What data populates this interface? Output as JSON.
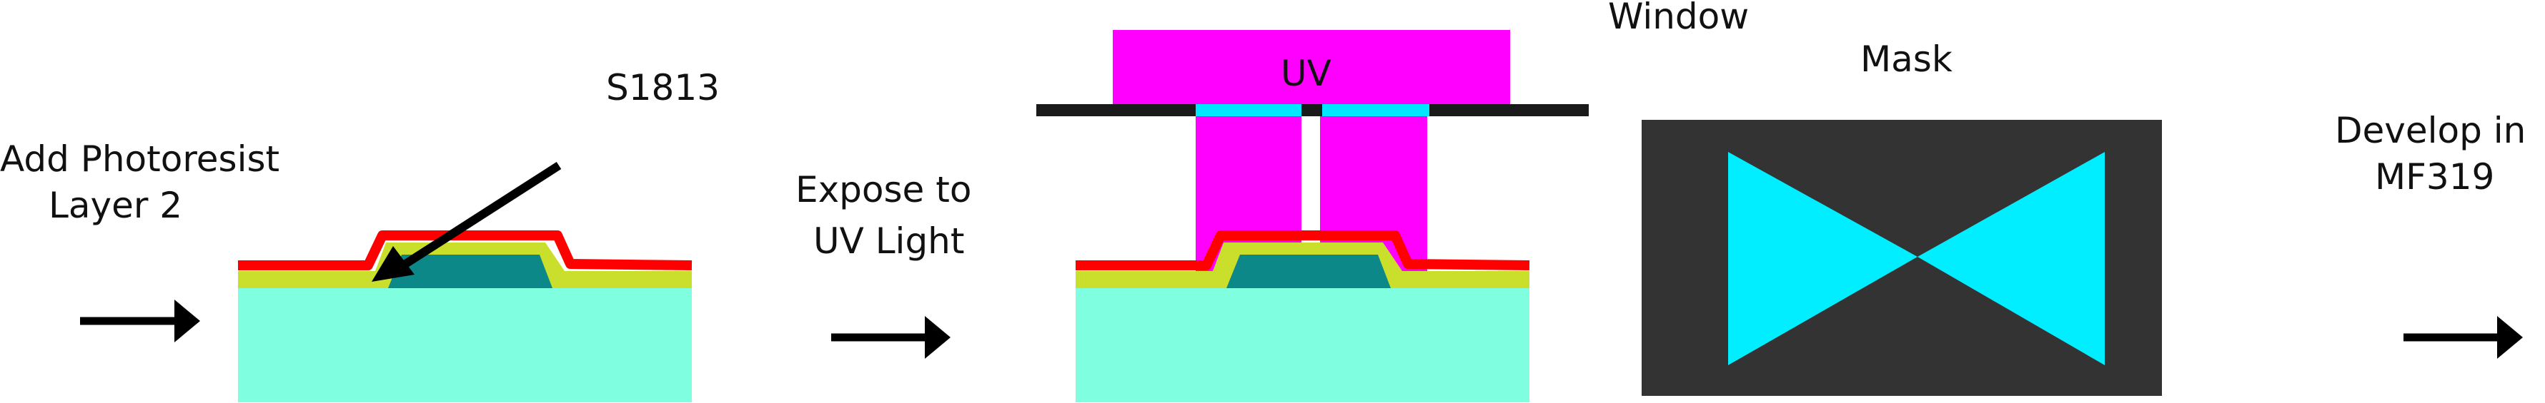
{
  "labels": {
    "add_photoresist_line1": "Add Photoresist",
    "add_photoresist_line2": "Layer 2",
    "s1813": "S1813",
    "expose_line1": "Expose to",
    "expose_line2": "UV Light",
    "uv": "UV",
    "window": "Window",
    "mask": "Mask",
    "develop_line1": "Develop in",
    "develop_line2": "MF319"
  },
  "colors": {
    "substrate": "#7fffe0",
    "base_layer": "#c9df2c",
    "feature": "#0d8888",
    "photoresist": "#ff0000",
    "uv": "#ff00ff",
    "window_opening": "#00e6ff",
    "mask_plate": "#333333",
    "mask_pattern": "#00eeff",
    "arrow": "#000000"
  }
}
